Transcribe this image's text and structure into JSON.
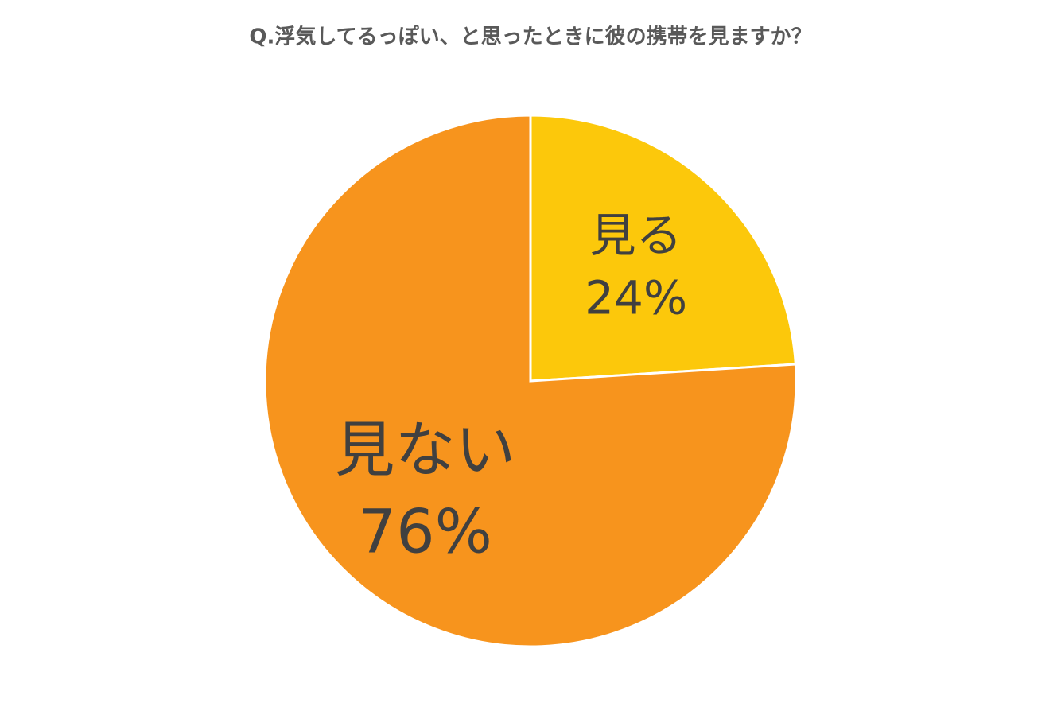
{
  "chart_data": {
    "type": "pie",
    "title": "Q.浮気してるっぽい、と思ったときに彼の携帯を見ますか？",
    "categories": [
      "見る",
      "見ない"
    ],
    "values": [
      24,
      76
    ],
    "value_labels": [
      "24%",
      "76%"
    ],
    "colors": [
      "#fcc80b",
      "#f7941d"
    ]
  }
}
